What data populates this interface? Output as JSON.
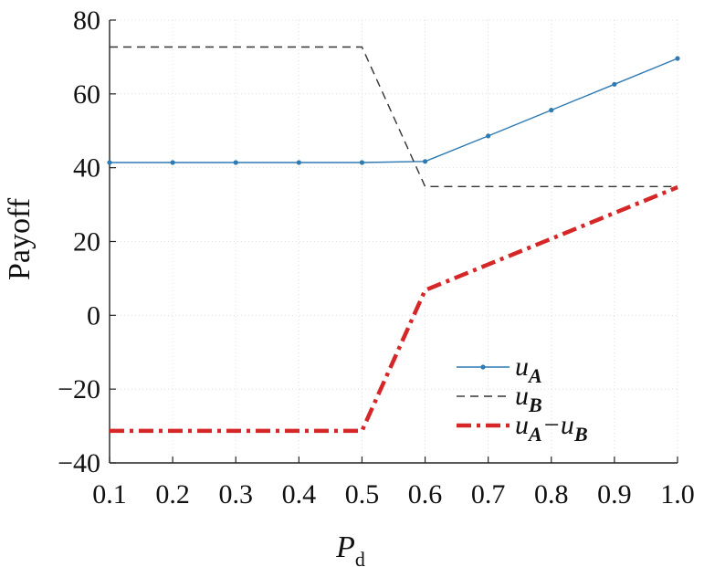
{
  "chart_data": {
    "type": "line",
    "title": "",
    "xlabel": "P",
    "xlabel_sub": "d",
    "ylabel": "Payoff",
    "xlim": [
      0.1,
      1.0
    ],
    "ylim": [
      -40,
      80
    ],
    "xticks": [
      "0.1",
      "0.2",
      "0.3",
      "0.4",
      "0.5",
      "0.6",
      "0.7",
      "0.8",
      "0.9",
      "1.0"
    ],
    "yticks": [
      "−40",
      "−20",
      "0",
      "20",
      "40",
      "60",
      "80"
    ],
    "grid": true,
    "legend_position": "lower-right",
    "series": [
      {
        "key": "uA",
        "name": "u",
        "name_sub": "A",
        "color": "#2e7ab3",
        "style": "solid-marker",
        "x": [
          0.1,
          0.2,
          0.3,
          0.4,
          0.5,
          0.6,
          0.7,
          0.8,
          0.9,
          1.0
        ],
        "y": [
          41.4,
          41.4,
          41.4,
          41.4,
          41.4,
          41.7,
          48.6,
          55.6,
          62.6,
          69.6
        ]
      },
      {
        "key": "uB",
        "name": "u",
        "name_sub": "B",
        "color": "#333333",
        "style": "dashed",
        "x": [
          0.1,
          0.5,
          0.6,
          1.0
        ],
        "y": [
          72.7,
          72.7,
          34.9,
          34.9
        ]
      },
      {
        "key": "uAminusuB",
        "name": "u",
        "name_sub": "A",
        "name_mid": "−u",
        "name_sub2": "B",
        "color": "#d62728",
        "style": "dashdot",
        "x": [
          0.1,
          0.5,
          0.6,
          1.0
        ],
        "y": [
          -31.3,
          -31.3,
          6.8,
          34.7
        ]
      }
    ]
  }
}
